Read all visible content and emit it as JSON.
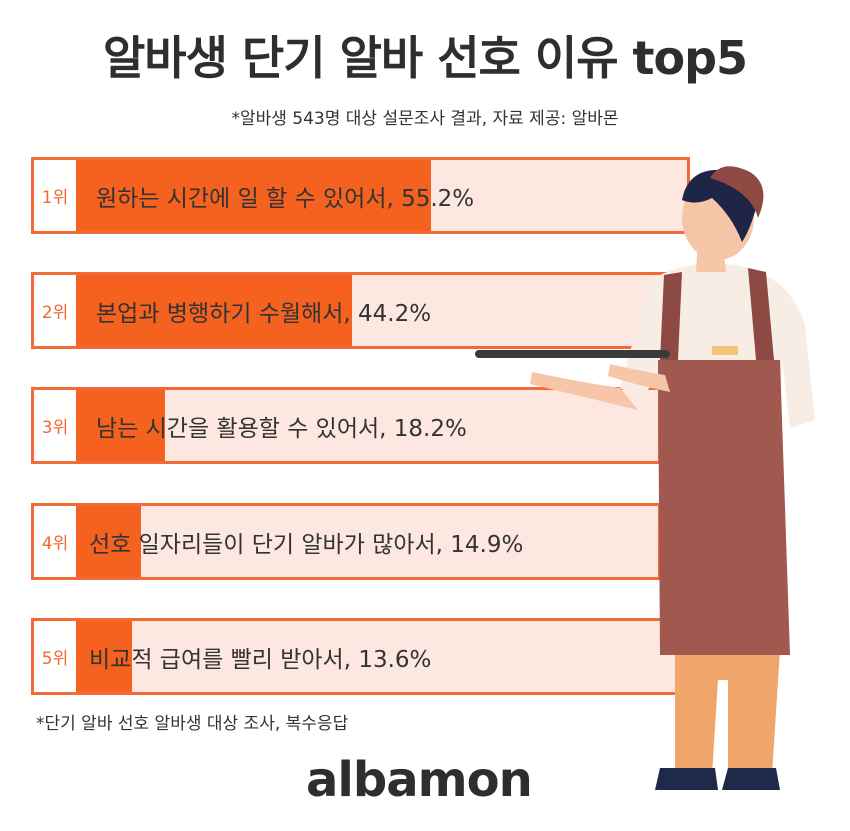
{
  "title": "알바생 단기 알바 선호 이유 top5",
  "subtitle": "*알바생 543명 대상 설문조사 결과, 자료 제공: 알바몬",
  "footnote": "*단기 알바 선호 알바생 대상 조사, 복수응답",
  "logo": "albamon",
  "colors": {
    "accent": "#f5611f",
    "track": "#fde7e1",
    "text": "#2e2e2e"
  },
  "chart_data": {
    "type": "bar",
    "orientation": "horizontal",
    "title": "알바생 단기 알바 선호 이유 top5",
    "subtitle": "*알바생 543명 대상 설문조사 결과, 자료 제공: 알바몬",
    "unit": "%",
    "xlim": [
      0,
      100
    ],
    "bars": [
      {
        "rank": "1위",
        "label": "원하는 시간에 일 할 수 있어서, 55.2%",
        "value": 55.2
      },
      {
        "rank": "2위",
        "label": "본업과 병행하기 수월해서, 44.2%",
        "value": 44.2
      },
      {
        "rank": "3위",
        "label": "남는 시간을 활용할 수 있어서, 18.2%",
        "value": 18.2
      },
      {
        "rank": "4위",
        "label": "선호 일자리들이 단기 알바가 많아서, 14.9%",
        "value": 14.9
      },
      {
        "rank": "5위",
        "label": "비교적 급여를 빨리 받아서, 13.6%",
        "value": 13.6
      }
    ]
  }
}
